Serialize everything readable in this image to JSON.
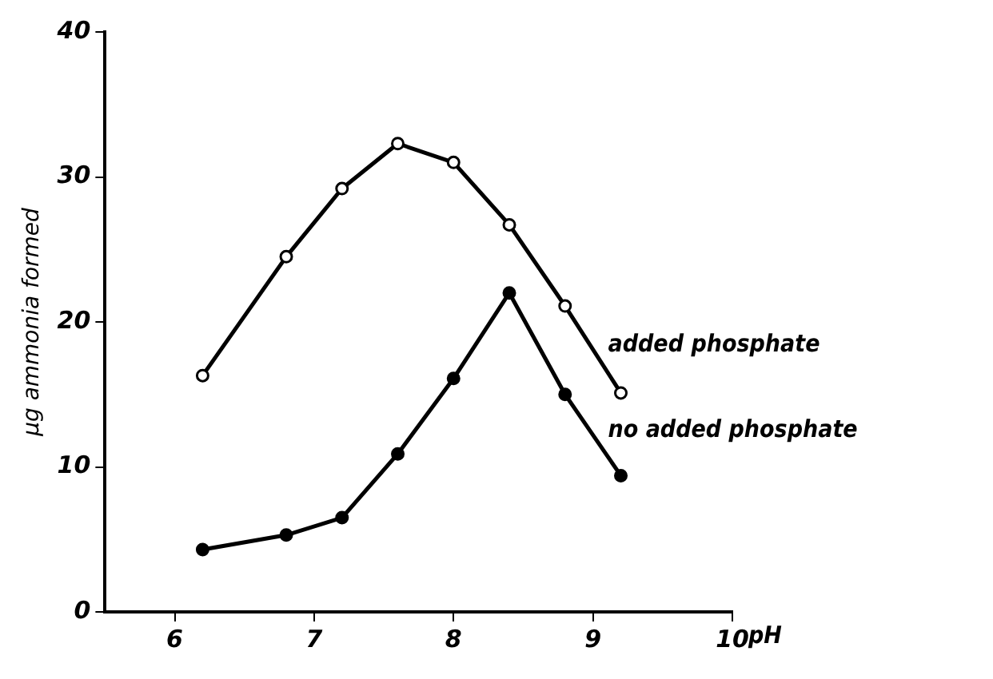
{
  "chart_data": {
    "type": "line",
    "xlabel": "pH",
    "ylabel": "µg ammonia formed",
    "x": [
      6.2,
      6.8,
      7.2,
      7.6,
      8.0,
      8.4,
      8.8,
      9.2
    ],
    "series": [
      {
        "name": "added phosphate",
        "color": "#000000",
        "marker": "open circle",
        "values": [
          16.3,
          24.5,
          29.2,
          32.3,
          31.0,
          26.7,
          21.1,
          15.1
        ]
      },
      {
        "name": "no added phosphate",
        "color": "#000000",
        "marker": "circle",
        "values": [
          4.3,
          5.3,
          6.5,
          10.9,
          16.1,
          22.0,
          15.0,
          9.4
        ]
      }
    ],
    "xlim": [
      5.5,
      10
    ],
    "xticks": [
      6,
      7,
      8,
      9,
      10
    ],
    "ylim": [
      0,
      40
    ],
    "yticks": [
      0,
      10,
      20,
      30,
      40
    ],
    "grid": false,
    "legend": false
  }
}
